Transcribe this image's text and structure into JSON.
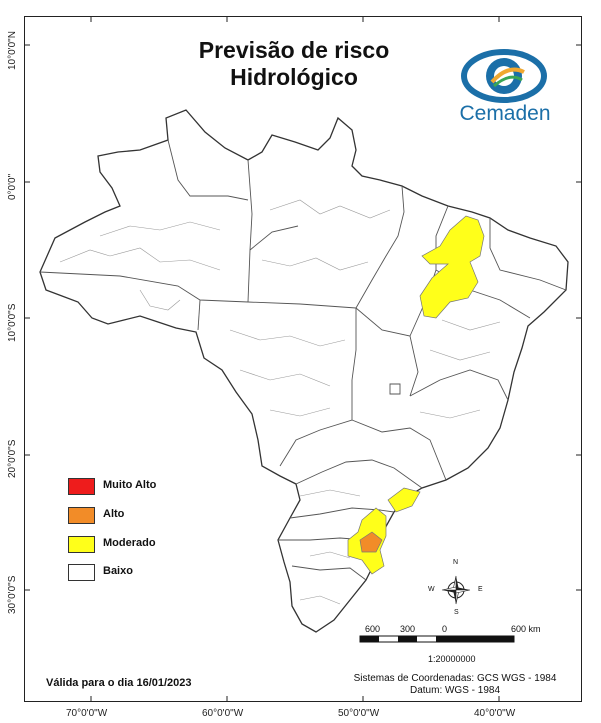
{
  "title_line1": "Previsão de risco",
  "title_line2": "Hidrológico",
  "logo": {
    "name": "Cemaden",
    "primary_color": "#1b6fa8",
    "accent_color": "#f0a830"
  },
  "legend": [
    {
      "label": "Muito Alto",
      "color": "#ee1c1c"
    },
    {
      "label": "Alto",
      "color": "#f28c28"
    },
    {
      "label": "Moderado",
      "color": "#ffff1a"
    },
    {
      "label": "Baixo",
      "color": "#ffffff"
    }
  ],
  "lat_labels": [
    "10°0'0\"N",
    "0°0'0\"",
    "10°0'0\"S",
    "20°0'0\"S",
    "30°0'0\"S"
  ],
  "lon_labels": [
    "70°0'0\"W",
    "60°0'0\"W",
    "50°0'0\"W",
    "40°0'0\"W"
  ],
  "valid_date": "Válida para o dia 16/01/2023",
  "coordinate_system": "Sistemas de Coordenadas: GCS WGS - 1984",
  "datum": "Datum: WGS - 1984",
  "scale": {
    "ticks": [
      "600",
      "300",
      "0",
      "600 km"
    ],
    "ratio": "1:20000000"
  },
  "compass": {
    "n": "N",
    "s": "S",
    "e": "E",
    "w": "W"
  }
}
